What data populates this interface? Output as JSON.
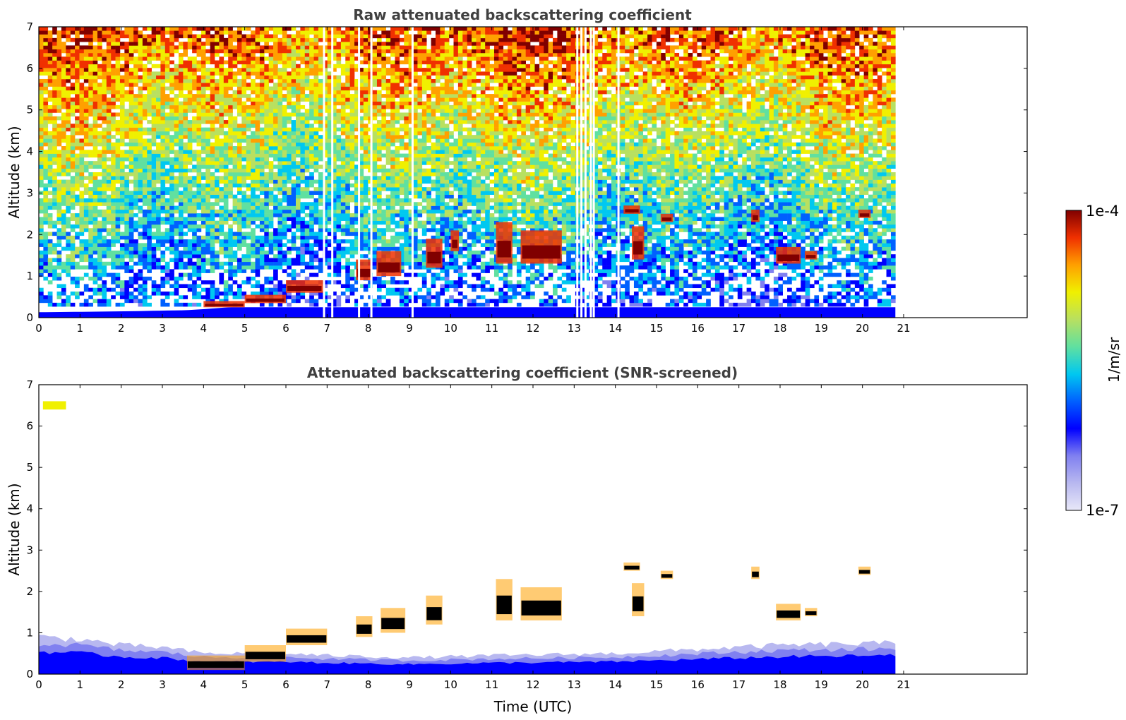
{
  "colors": {
    "colormap": [
      "#e8e8f8",
      "#b8b8f0",
      "#8080f0",
      "#0000ff",
      "#0060ff",
      "#00c8f0",
      "#60e0a0",
      "#b8e060",
      "#f0f000",
      "#ffa000",
      "#f03000",
      "#800000"
    ],
    "text": "#000000",
    "title": "#404040",
    "cloud_core": "#000000"
  },
  "colorbar": {
    "label": "1/m/sr",
    "max_label": "1e-4",
    "min_label": "1e-7",
    "scale": "log",
    "range": [
      1e-07,
      0.0001
    ]
  },
  "chart_data": [
    {
      "type": "heatmap",
      "title": "Raw attenuated backscattering coefficient",
      "xlabel": "",
      "ylabel": "Altitude (km)",
      "xlim": [
        0,
        24
      ],
      "ylim": [
        0,
        7
      ],
      "xticks": [
        "0",
        "1",
        "2",
        "3",
        "4",
        "5",
        "6",
        "7",
        "8",
        "9",
        "10",
        "11",
        "12",
        "13",
        "14",
        "15",
        "16",
        "17",
        "18",
        "19",
        "20",
        "21"
      ],
      "yticks": [
        "0",
        "1",
        "2",
        "3",
        "4",
        "5",
        "6",
        "7"
      ],
      "data_end_hour": 20.8,
      "aerosol_layer_top_km": [
        [
          0,
          0.1
        ],
        [
          2.3,
          0.15
        ],
        [
          3.6,
          0.2
        ],
        [
          4.0,
          0.25
        ],
        [
          5.0,
          0.4
        ],
        [
          6.0,
          0.7
        ],
        [
          7.0,
          0.9
        ],
        [
          8.0,
          1.0
        ],
        [
          9.0,
          1.1
        ]
      ],
      "cloud_segments": [
        {
          "x": 4.0,
          "y": 0.25,
          "w": 1.0,
          "h": 0.15
        },
        {
          "x": 5.0,
          "y": 0.35,
          "w": 1.0,
          "h": 0.2
        },
        {
          "x": 6.0,
          "y": 0.6,
          "w": 0.9,
          "h": 0.3
        },
        {
          "x": 7.7,
          "y": 0.9,
          "w": 0.4,
          "h": 0.5
        },
        {
          "x": 8.2,
          "y": 1.0,
          "w": 0.6,
          "h": 0.6
        },
        {
          "x": 9.4,
          "y": 1.2,
          "w": 0.4,
          "h": 0.7
        },
        {
          "x": 10.0,
          "y": 1.6,
          "w": 0.2,
          "h": 0.5
        },
        {
          "x": 11.1,
          "y": 1.3,
          "w": 0.4,
          "h": 1.0
        },
        {
          "x": 11.7,
          "y": 1.3,
          "w": 1.0,
          "h": 0.8
        },
        {
          "x": 14.2,
          "y": 2.5,
          "w": 0.4,
          "h": 0.2
        },
        {
          "x": 14.4,
          "y": 1.4,
          "w": 0.3,
          "h": 0.8
        },
        {
          "x": 15.1,
          "y": 2.3,
          "w": 0.3,
          "h": 0.2
        },
        {
          "x": 17.3,
          "y": 2.3,
          "w": 0.2,
          "h": 0.3
        },
        {
          "x": 17.9,
          "y": 1.3,
          "w": 0.6,
          "h": 0.4
        },
        {
          "x": 18.6,
          "y": 1.4,
          "w": 0.3,
          "h": 0.2
        },
        {
          "x": 19.9,
          "y": 2.4,
          "w": 0.3,
          "h": 0.2
        }
      ],
      "data_gaps_hour": [
        6.9,
        7.1,
        7.75,
        8.05,
        9.05,
        13.05,
        13.15,
        13.25,
        13.38,
        13.45,
        14.05
      ]
    },
    {
      "type": "heatmap",
      "title": "Attenuated backscattering coefficient (SNR-screened)",
      "xlabel": "Time (UTC)",
      "ylabel": "Altitude (km)",
      "xlim": [
        0,
        24
      ],
      "ylim": [
        0,
        7
      ],
      "xticks": [
        "0",
        "1",
        "2",
        "3",
        "4",
        "5",
        "6",
        "7",
        "8",
        "9",
        "10",
        "11",
        "12",
        "13",
        "14",
        "15",
        "16",
        "17",
        "18",
        "19",
        "20",
        "21"
      ],
      "yticks": [
        "0",
        "1",
        "2",
        "3",
        "4",
        "5",
        "6",
        "7"
      ],
      "data_end_hour": 20.8,
      "boundary_layer_top_km": [
        [
          0,
          0.9
        ],
        [
          1.0,
          0.85
        ],
        [
          2.0,
          0.7
        ],
        [
          3.0,
          0.65
        ],
        [
          4.0,
          0.5
        ],
        [
          6.0,
          0.5
        ],
        [
          7.0,
          0.45
        ],
        [
          9.0,
          0.4
        ],
        [
          11.0,
          0.45
        ],
        [
          14.0,
          0.5
        ],
        [
          16.0,
          0.6
        ],
        [
          18.0,
          0.7
        ],
        [
          20.8,
          0.75
        ]
      ],
      "cloud_segments": [
        {
          "x": 3.6,
          "y": 0.1,
          "w": 1.4,
          "h": 0.35
        },
        {
          "x": 5.0,
          "y": 0.3,
          "w": 1.0,
          "h": 0.4
        },
        {
          "x": 6.0,
          "y": 0.7,
          "w": 1.0,
          "h": 0.4
        },
        {
          "x": 7.7,
          "y": 0.9,
          "w": 0.4,
          "h": 0.5
        },
        {
          "x": 8.3,
          "y": 1.0,
          "w": 0.6,
          "h": 0.6
        },
        {
          "x": 9.4,
          "y": 1.2,
          "w": 0.4,
          "h": 0.7
        },
        {
          "x": 11.1,
          "y": 1.3,
          "w": 0.4,
          "h": 1.0
        },
        {
          "x": 11.7,
          "y": 1.3,
          "w": 1.0,
          "h": 0.8
        },
        {
          "x": 14.2,
          "y": 2.5,
          "w": 0.4,
          "h": 0.2
        },
        {
          "x": 14.4,
          "y": 1.4,
          "w": 0.3,
          "h": 0.8
        },
        {
          "x": 15.1,
          "y": 2.3,
          "w": 0.3,
          "h": 0.2
        },
        {
          "x": 17.3,
          "y": 2.3,
          "w": 0.2,
          "h": 0.3
        },
        {
          "x": 17.9,
          "y": 1.3,
          "w": 0.6,
          "h": 0.4
        },
        {
          "x": 18.6,
          "y": 1.4,
          "w": 0.3,
          "h": 0.2
        },
        {
          "x": 19.9,
          "y": 2.4,
          "w": 0.3,
          "h": 0.2
        }
      ],
      "upper_aerosol_patch": {
        "x": [
          0.1,
          1.5
        ],
        "y": [
          6.1,
          6.6
        ]
      }
    }
  ]
}
